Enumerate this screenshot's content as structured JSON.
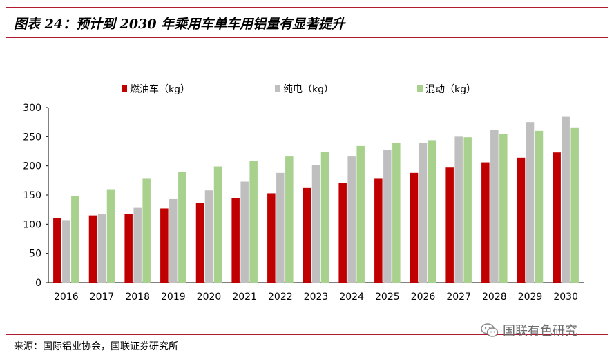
{
  "figure_title": "图表 24：预计到 2030 年乘用车单车用铝量有显著提升",
  "source_text": "来源：国际铝业协会，国联证券研究所",
  "watermark": {
    "text": "国联有色研究",
    "icon": "wechat-icon"
  },
  "colors": {
    "rule": "#b01a2e",
    "fuel": "#c00000",
    "ev": "#bfbfbf",
    "hybrid": "#a9d18e"
  },
  "chart_data": {
    "type": "bar",
    "title": "",
    "xlabel": "",
    "ylabel": "",
    "ylim": [
      0,
      300
    ],
    "yticks": [
      0,
      50,
      100,
      150,
      200,
      250,
      300
    ],
    "legend_position": "top",
    "grid": false,
    "categories": [
      "2016",
      "2017",
      "2018",
      "2019",
      "2020",
      "2021",
      "2022",
      "2023",
      "2024",
      "2025",
      "2026",
      "2027",
      "2028",
      "2029",
      "2030"
    ],
    "series": [
      {
        "name": "燃油车（kg）",
        "color": "#c00000",
        "values": [
          110,
          115,
          118,
          127,
          136,
          145,
          153,
          162,
          171,
          179,
          188,
          197,
          206,
          214,
          223
        ]
      },
      {
        "name": "纯电（kg）",
        "color": "#bfbfbf",
        "values": [
          107,
          118,
          128,
          143,
          158,
          173,
          188,
          202,
          216,
          227,
          239,
          250,
          262,
          275,
          284
        ]
      },
      {
        "name": "混动（kg）",
        "color": "#a9d18e",
        "values": [
          148,
          160,
          179,
          189,
          199,
          208,
          216,
          224,
          234,
          239,
          244,
          249,
          255,
          260,
          266
        ]
      }
    ]
  }
}
